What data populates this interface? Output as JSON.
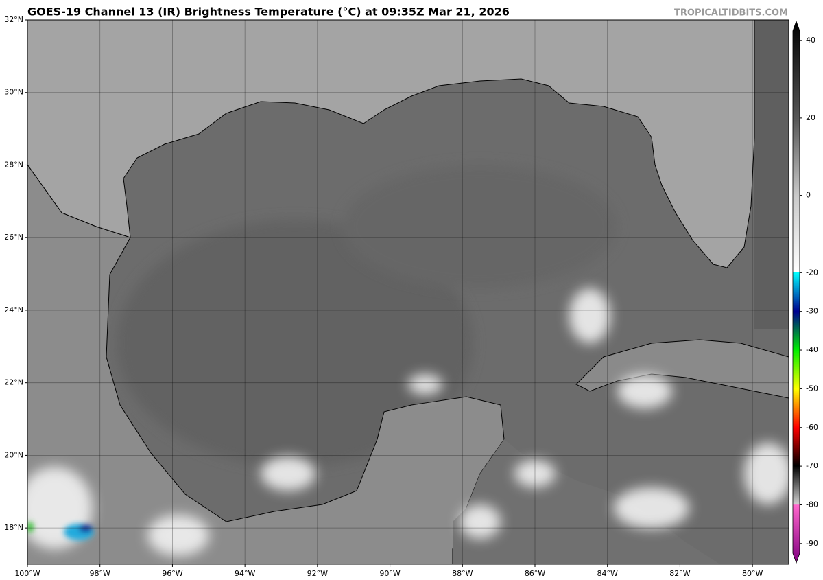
{
  "header": {
    "title": "GOES-19 Channel 13 (IR) Brightness Temperature (°C) at 09:35Z Mar 21, 2026",
    "watermark": "TROPICALTIDBITS.COM"
  },
  "map": {
    "lonlim": [
      -100,
      -79
    ],
    "latlim": [
      17,
      32
    ],
    "lat_ticks": [
      {
        "value": 32,
        "label": "32°N"
      },
      {
        "value": 30,
        "label": "30°N"
      },
      {
        "value": 28,
        "label": "28°N"
      },
      {
        "value": 26,
        "label": "26°N"
      },
      {
        "value": 24,
        "label": "24°N"
      },
      {
        "value": 22,
        "label": "22°N"
      },
      {
        "value": 20,
        "label": "20°N"
      },
      {
        "value": 18,
        "label": "18°N"
      }
    ],
    "lon_ticks": [
      {
        "value": -100,
        "label": "100°W"
      },
      {
        "value": -98,
        "label": "98°W"
      },
      {
        "value": -96,
        "label": "96°W"
      },
      {
        "value": -94,
        "label": "94°W"
      },
      {
        "value": -92,
        "label": "92°W"
      },
      {
        "value": -90,
        "label": "90°W"
      },
      {
        "value": -88,
        "label": "88°W"
      },
      {
        "value": -86,
        "label": "86°W"
      },
      {
        "value": -84,
        "label": "84°W"
      },
      {
        "value": -82,
        "label": "82°W"
      },
      {
        "value": -80,
        "label": "80°W"
      }
    ]
  },
  "colorbar": {
    "lim": [
      -95,
      45
    ],
    "ticks": [
      40,
      20,
      0,
      -20,
      -30,
      -40,
      -50,
      -60,
      -70,
      -80,
      -90
    ]
  }
}
